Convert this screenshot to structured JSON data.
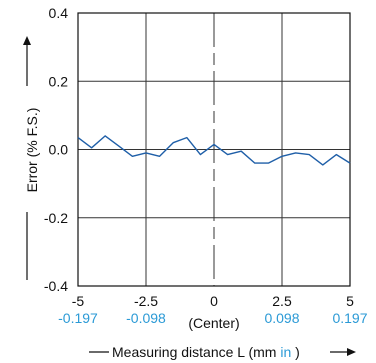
{
  "chart_data": {
    "type": "line",
    "title": "",
    "xlabel": "Measuring distance L (mm",
    "xlabel_unit_alt": "in",
    "xlabel_close": ")",
    "ylabel": "Error (% F.S.)",
    "center_label": "(Center)",
    "xlim": [
      -5,
      5
    ],
    "ylim": [
      -0.4,
      0.4
    ],
    "grid": true,
    "x_ticks": [
      {
        "value": -5,
        "label": "-5",
        "alt_label": "-0.197"
      },
      {
        "value": -2.5,
        "label": "-2.5",
        "alt_label": "-0.098"
      },
      {
        "value": 0,
        "label": "0",
        "alt_label": ""
      },
      {
        "value": 2.5,
        "label": "2.5",
        "alt_label": "0.098"
      },
      {
        "value": 5,
        "label": "5",
        "alt_label": "0.197"
      }
    ],
    "y_ticks": [
      {
        "value": 0.4,
        "label": "0.4"
      },
      {
        "value": 0.2,
        "label": "0.2"
      },
      {
        "value": 0.0,
        "label": "0.0"
      },
      {
        "value": -0.2,
        "label": "-0.2"
      },
      {
        "value": -0.4,
        "label": "-0.4"
      }
    ],
    "series": [
      {
        "color": "#1f5fa8",
        "x": [
          -5,
          -4.5,
          -4,
          -3.5,
          -3,
          -2.5,
          -2,
          -1.5,
          -1,
          -0.5,
          0,
          0.5,
          1,
          1.5,
          2,
          2.5,
          3,
          3.5,
          4,
          4.5,
          5
        ],
        "y": [
          0.035,
          0.005,
          0.04,
          0.01,
          -0.02,
          -0.01,
          -0.02,
          0.02,
          0.035,
          -0.015,
          0.015,
          -0.015,
          -0.005,
          -0.04,
          -0.04,
          -0.02,
          -0.01,
          -0.015,
          -0.045,
          -0.015,
          -0.04
        ]
      }
    ],
    "colors": {
      "axis": "#111111",
      "grid": "#333333",
      "alt_unit": "#2b9ad6"
    }
  }
}
